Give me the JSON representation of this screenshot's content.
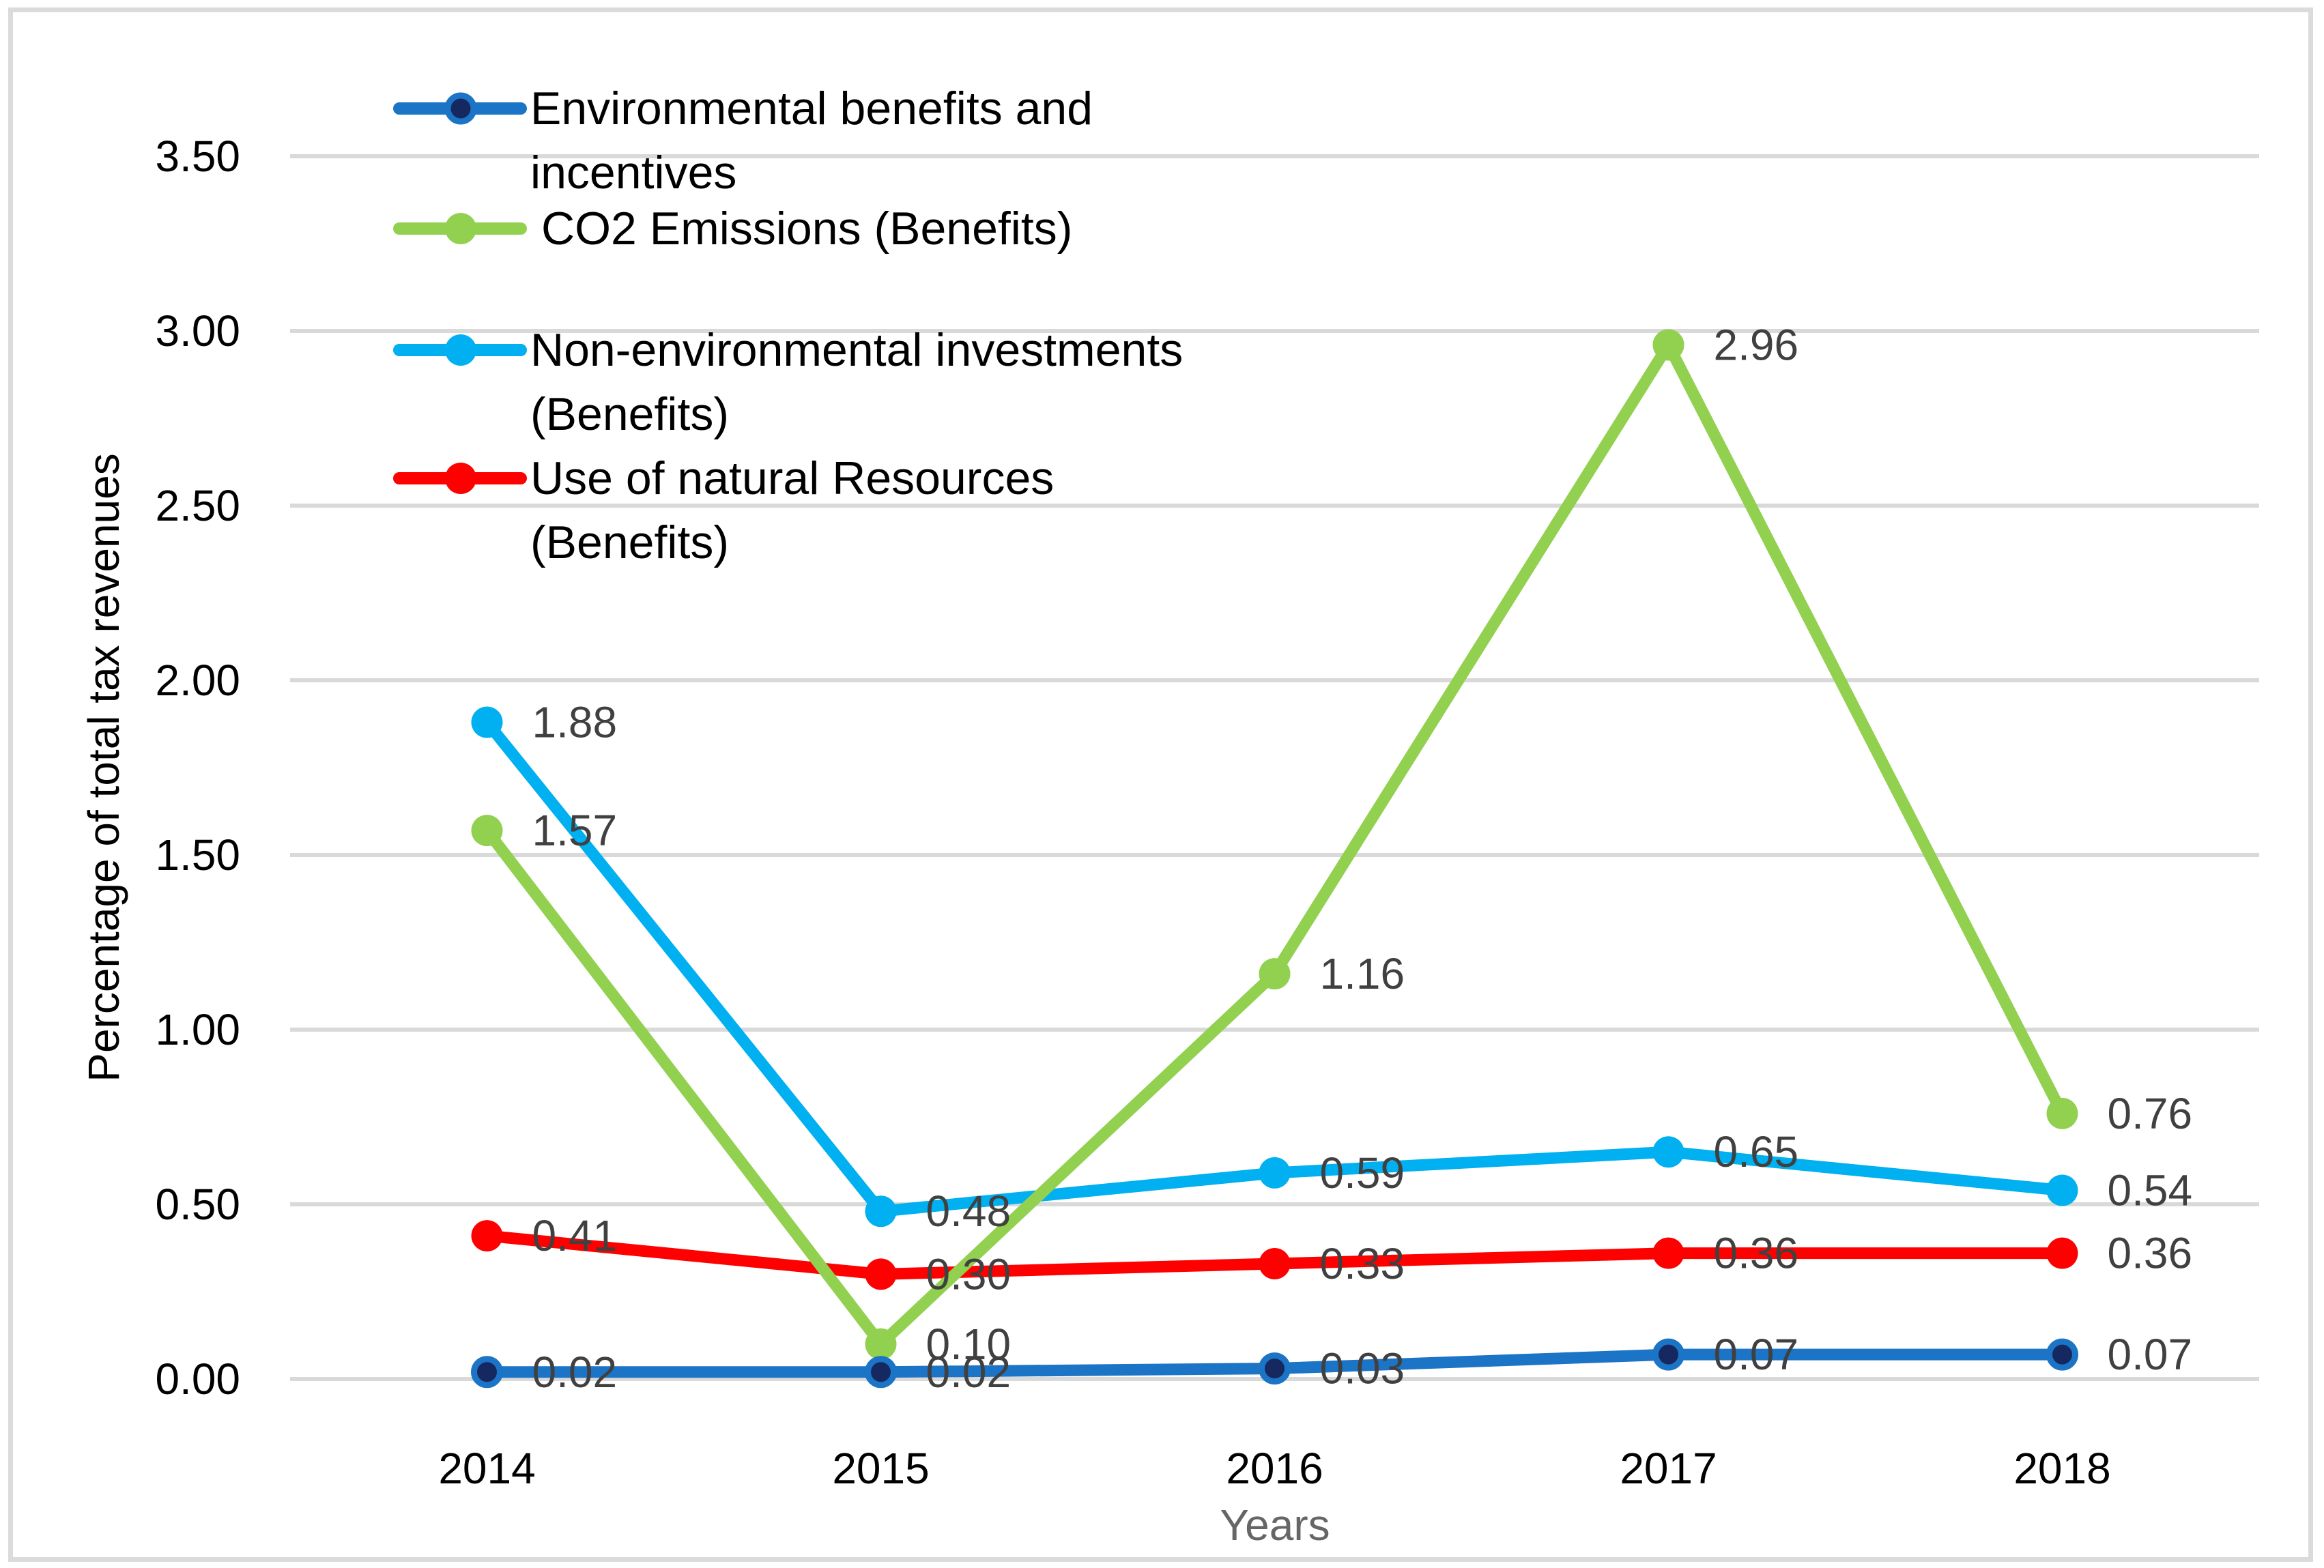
{
  "chart_data": {
    "type": "line",
    "title": "",
    "xlabel": "Years",
    "ylabel": "Percentage of total tax revenues",
    "categories": [
      "2014",
      "2015",
      "2016",
      "2017",
      "2018"
    ],
    "ylim": [
      0,
      3.5
    ],
    "ytick_step": 0.5,
    "ytick_labels": [
      "0.00",
      "0.50",
      "1.00",
      "1.50",
      "2.00",
      "2.50",
      "3.00",
      "3.50"
    ],
    "grid": true,
    "legend_position": "inside-top-left",
    "series": [
      {
        "name": "Environmental benefits and incentives",
        "legend_lines": [
          "Environmental benefits and",
          "incentives"
        ],
        "color": "#1B74C5",
        "marker_core": "#152960",
        "values": [
          0.02,
          0.02,
          0.03,
          0.07,
          0.07
        ],
        "labels": [
          "0.02",
          "0.02",
          "0.03",
          "0.07",
          "0.07"
        ]
      },
      {
        "name": "CO2 Emissions (Benefits)",
        "legend_lines": [
          " CO2 Emissions (Benefits)"
        ],
        "color": "#92D050",
        "marker_core": "",
        "values": [
          1.57,
          0.1,
          1.16,
          2.96,
          0.76
        ],
        "labels": [
          "1.57",
          "0.10",
          "1.16",
          "2.96",
          "0.76"
        ]
      },
      {
        "name": "Non-environmental investments (Benefits)",
        "legend_lines": [
          "Non-environmental investments",
          "(Benefits)"
        ],
        "color": "#00B0F0",
        "marker_core": "",
        "values": [
          1.88,
          0.48,
          0.59,
          0.65,
          0.54
        ],
        "labels": [
          "1.88",
          "0.48",
          "0.59",
          "0.65",
          "0.54"
        ]
      },
      {
        "name": "Use of natural Resources (Benefits)",
        "legend_lines": [
          "Use of natural Resources",
          "(Benefits)"
        ],
        "color": "#FF0000",
        "marker_core": "",
        "values": [
          0.41,
          0.3,
          0.33,
          0.36,
          0.36
        ],
        "labels": [
          "0.41",
          "0.30",
          "0.33",
          "0.36",
          "0.36"
        ]
      }
    ],
    "colors": {
      "gridline": "#D9D9D9",
      "data_label": "#404040",
      "axis_text": "#000000",
      "x_axis_title_text": "#666666",
      "border": "#DBDBDB",
      "background": "#FFFFFF"
    }
  }
}
